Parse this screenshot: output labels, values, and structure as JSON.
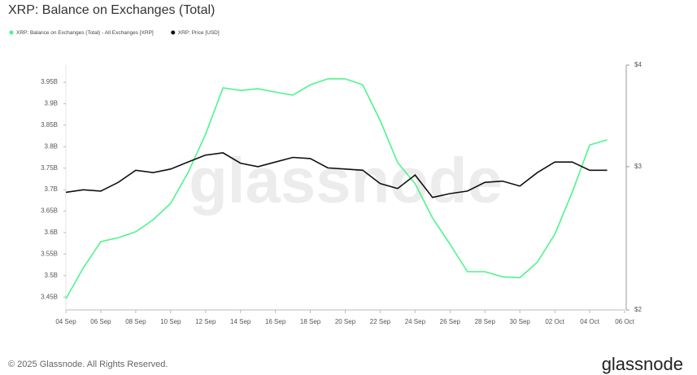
{
  "chart_data": {
    "type": "line",
    "title": "XRP: Balance on Exchanges (Total)",
    "watermark": "glassnode",
    "footer": "© 2025 Glassnode. All Rights Reserved.",
    "logo": "glassnode",
    "x": [
      "04 Sep",
      "05 Sep",
      "06 Sep",
      "07 Sep",
      "08 Sep",
      "09 Sep",
      "10 Sep",
      "11 Sep",
      "12 Sep",
      "13 Sep",
      "14 Sep",
      "15 Sep",
      "16 Sep",
      "17 Sep",
      "18 Sep",
      "19 Sep",
      "20 Sep",
      "21 Sep",
      "22 Sep",
      "23 Sep",
      "24 Sep",
      "25 Sep",
      "26 Sep",
      "27 Sep",
      "28 Sep",
      "29 Sep",
      "30 Sep",
      "01 Oct",
      "02 Oct",
      "03 Oct",
      "04 Oct",
      "05 Oct"
    ],
    "xlim": [
      "04 Sep",
      "06 Oct"
    ],
    "xticks": [
      "04 Sep",
      "06 Sep",
      "08 Sep",
      "10 Sep",
      "12 Sep",
      "14 Sep",
      "16 Sep",
      "18 Sep",
      "20 Sep",
      "22 Sep",
      "24 Sep",
      "26 Sep",
      "28 Sep",
      "30 Sep",
      "02 Oct",
      "04 Oct",
      "06 Oct"
    ],
    "ylim": [
      3.42,
      3.99
    ],
    "yticks": [
      {
        "value": 3.45,
        "label": "3.45B"
      },
      {
        "value": 3.5,
        "label": "3.5B"
      },
      {
        "value": 3.55,
        "label": "3.55B"
      },
      {
        "value": 3.6,
        "label": "3.6B"
      },
      {
        "value": 3.65,
        "label": "3.65B"
      },
      {
        "value": 3.7,
        "label": "3.7B"
      },
      {
        "value": 3.75,
        "label": "3.75B"
      },
      {
        "value": 3.8,
        "label": "3.8B"
      },
      {
        "value": 3.85,
        "label": "3.85B"
      },
      {
        "value": 3.9,
        "label": "3.9B"
      },
      {
        "value": 3.95,
        "label": "3.95B"
      }
    ],
    "y2lim": [
      2,
      4
    ],
    "y2scale": "log",
    "y2ticks": [
      {
        "value": 2,
        "label": "$2"
      },
      {
        "value": 3,
        "label": "$3"
      },
      {
        "value": 4,
        "label": "$4"
      }
    ],
    "series": [
      {
        "name": "XRP: Balance on Exchanges (Total) - All Exchanges [XRP]",
        "color": "#4cf58c",
        "values": [
          3.446,
          3.518,
          3.579,
          3.588,
          3.602,
          3.63,
          3.668,
          3.74,
          3.829,
          3.937,
          3.931,
          3.935,
          3.927,
          3.92,
          3.944,
          3.958,
          3.958,
          3.944,
          3.861,
          3.763,
          3.714,
          3.634,
          3.573,
          3.509,
          3.509,
          3.497,
          3.495,
          3.531,
          3.596,
          3.694,
          3.804,
          3.816
        ]
      },
      {
        "name": "XRP: Price [USD]",
        "color": "#111111",
        "axis": "y2",
        "values": [
          2.79,
          2.81,
          2.8,
          2.87,
          2.97,
          2.95,
          2.98,
          3.04,
          3.1,
          3.12,
          3.03,
          3.0,
          3.04,
          3.08,
          3.07,
          2.99,
          2.98,
          2.97,
          2.86,
          2.82,
          2.93,
          2.75,
          2.78,
          2.8,
          2.87,
          2.88,
          2.84,
          2.95,
          3.04,
          3.04,
          2.97,
          2.97
        ]
      }
    ]
  }
}
